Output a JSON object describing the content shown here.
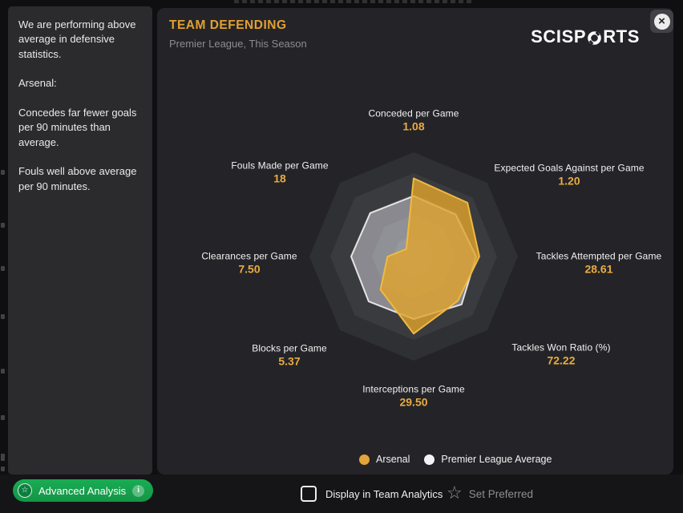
{
  "sidebar": {
    "paragraphs": [
      "We are performing above average in defensive statistics.",
      "Arsenal:",
      "Concedes far fewer goals per 90 minutes than average.",
      "Fouls well above average per 90 minutes."
    ]
  },
  "header": {
    "title": "TEAM DEFENDING",
    "subtitle": "Premier League, This Season",
    "brand": "SCISPORTS",
    "brand_left": "SCISP",
    "brand_right": "RTS",
    "close_glyph": "×"
  },
  "legend": [
    {
      "label": "Arsenal",
      "color": "#e2a43b"
    },
    {
      "label": "Premier League Average",
      "color": "#f3f3f5"
    }
  ],
  "footer": {
    "advanced_analysis_label": "Advanced Analysis",
    "advanced_star_glyph": "☆",
    "info_glyph": "i",
    "display_label": "Display in Team Analytics",
    "display_checked": false,
    "set_preferred_label": "Set Preferred",
    "preferred_star_glyph": "☆"
  },
  "chart_data": {
    "type": "radar",
    "title": "TEAM DEFENDING",
    "subtitle": "Premier League, This Season",
    "axes": [
      {
        "label": "Conceded per Game",
        "value": "1.08"
      },
      {
        "label": "Expected Goals Against per Game",
        "value": "1.20"
      },
      {
        "label": "Tackles Attempted per Game",
        "value": "28.61"
      },
      {
        "label": "Tackles Won Ratio (%)",
        "value": "72.22"
      },
      {
        "label": "Interceptions per Game",
        "value": "29.50"
      },
      {
        "label": "Blocks per Game",
        "value": "5.37"
      },
      {
        "label": "Clearances per Game",
        "value": "7.50"
      },
      {
        "label": "Fouls Made per Game",
        "value": "18"
      }
    ],
    "series": [
      {
        "name": "Arsenal",
        "fill": "rgba(224,164,44,0.8)",
        "stroke": "#f0ba40",
        "r": [
          0.75,
          0.73,
          0.63,
          0.6,
          0.74,
          0.45,
          0.25,
          0.1
        ]
      },
      {
        "name": "Premier League Average",
        "fill": "rgba(238,238,246,0.40)",
        "stroke": "rgba(250,250,252,0.85)",
        "r": [
          0.58,
          0.57,
          0.6,
          0.65,
          0.6,
          0.61,
          0.6,
          0.59
        ]
      }
    ],
    "ring_colors": [
      "#2f3033",
      "#3a3b3f",
      "#46474c",
      "#525359",
      "#5e5f66"
    ],
    "legend_position": "bottom"
  }
}
